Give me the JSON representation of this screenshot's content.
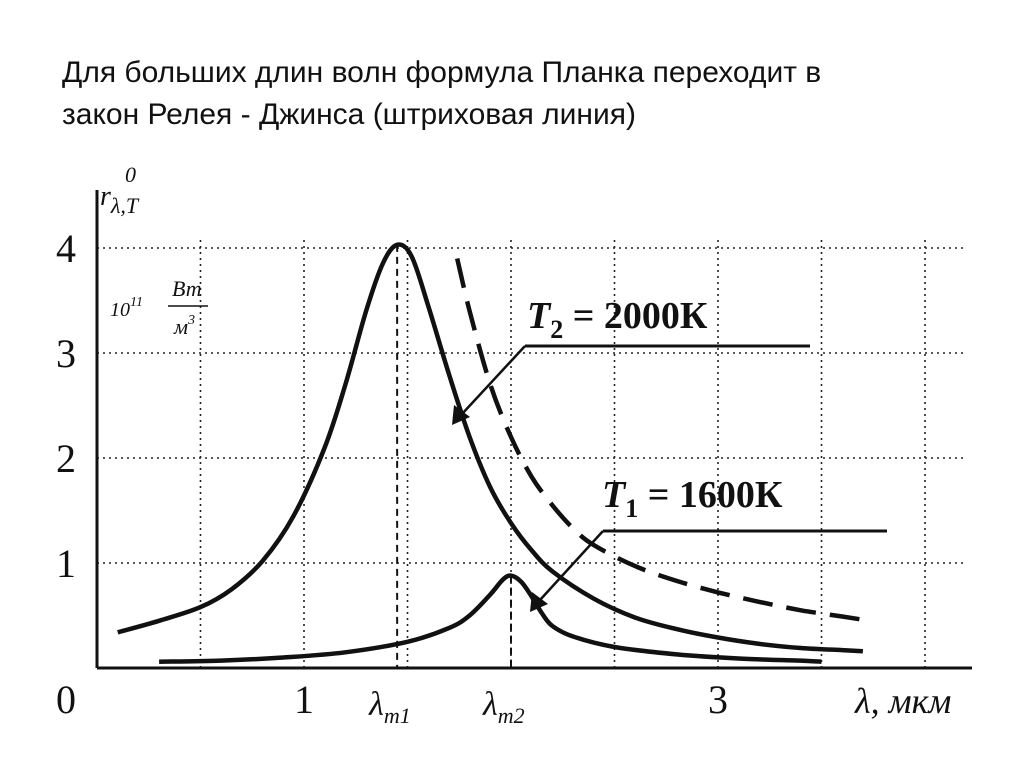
{
  "heading": {
    "line1": "Для больших длин волн формула Планка переходит в",
    "line2": "закон Релея - Джинса (штриховая линия)"
  },
  "chart_data": {
    "type": "line",
    "ylabel": "r",
    "ylabel_sup": "0",
    "ylabel_sub": "λ,T",
    "yunit_exp": "10",
    "yunit_exp_sup": "11",
    "yunit_num": "Вт",
    "yunit_den": "м",
    "yunit_den_sup": "3",
    "xlabel": "λ, мкм",
    "origin_label": "0",
    "x_ticks": [
      {
        "value": 1,
        "label": "1"
      },
      {
        "value": 3,
        "label": "3"
      }
    ],
    "y_ticks": [
      {
        "value": 1,
        "label": "1"
      },
      {
        "value": 2,
        "label": "2"
      },
      {
        "value": 3,
        "label": "3"
      },
      {
        "value": 4,
        "label": "4"
      }
    ],
    "xlim": [
      0,
      4.2
    ],
    "ylim": [
      0,
      4.3
    ],
    "grid": true,
    "peak_markers": [
      {
        "label_main": "λ",
        "label_sub": "m1",
        "x": 1.45,
        "y": 4.03
      },
      {
        "label_main": "λ",
        "label_sub": "m2",
        "x": 2.0,
        "y": 0.88
      }
    ],
    "series": [
      {
        "label": "T2 = 2000K",
        "label_main": "T",
        "label_sub": "2",
        "label_rest": " = 2000К",
        "style": "solid",
        "points": [
          [
            0.1,
            0.34
          ],
          [
            0.3,
            0.45
          ],
          [
            0.5,
            0.58
          ],
          [
            0.65,
            0.75
          ],
          [
            0.8,
            1.02
          ],
          [
            0.95,
            1.45
          ],
          [
            1.1,
            2.1
          ],
          [
            1.2,
            2.7
          ],
          [
            1.3,
            3.4
          ],
          [
            1.38,
            3.85
          ],
          [
            1.45,
            4.03
          ],
          [
            1.52,
            3.92
          ],
          [
            1.6,
            3.45
          ],
          [
            1.7,
            2.8
          ],
          [
            1.8,
            2.2
          ],
          [
            1.9,
            1.72
          ],
          [
            2.0,
            1.38
          ],
          [
            2.1,
            1.12
          ],
          [
            2.2,
            0.92
          ],
          [
            2.4,
            0.66
          ],
          [
            2.6,
            0.48
          ],
          [
            2.8,
            0.37
          ],
          [
            3.0,
            0.29
          ],
          [
            3.2,
            0.23
          ],
          [
            3.4,
            0.19
          ],
          [
            3.6,
            0.17
          ],
          [
            3.7,
            0.16
          ]
        ]
      },
      {
        "label": "T1 = 1600K",
        "label_main": "T",
        "label_sub": "1",
        "label_rest": " = 1600К",
        "style": "solid",
        "points": [
          [
            0.3,
            0.06
          ],
          [
            0.6,
            0.07
          ],
          [
            0.9,
            0.1
          ],
          [
            1.2,
            0.15
          ],
          [
            1.5,
            0.25
          ],
          [
            1.7,
            0.38
          ],
          [
            1.8,
            0.5
          ],
          [
            1.9,
            0.7
          ],
          [
            1.96,
            0.84
          ],
          [
            2.0,
            0.88
          ],
          [
            2.05,
            0.82
          ],
          [
            2.1,
            0.68
          ],
          [
            2.15,
            0.52
          ],
          [
            2.2,
            0.4
          ],
          [
            2.3,
            0.3
          ],
          [
            2.5,
            0.2
          ],
          [
            2.8,
            0.13
          ],
          [
            3.1,
            0.09
          ],
          [
            3.4,
            0.07
          ],
          [
            3.5,
            0.06
          ]
        ]
      },
      {
        "label": "Rayleigh-Jeans",
        "style": "dashed",
        "points": [
          [
            1.74,
            3.9
          ],
          [
            1.8,
            3.4
          ],
          [
            1.9,
            2.7
          ],
          [
            2.0,
            2.2
          ],
          [
            2.1,
            1.82
          ],
          [
            2.2,
            1.55
          ],
          [
            2.3,
            1.33
          ],
          [
            2.4,
            1.17
          ],
          [
            2.6,
            0.97
          ],
          [
            2.8,
            0.83
          ],
          [
            3.0,
            0.72
          ],
          [
            3.2,
            0.63
          ],
          [
            3.4,
            0.55
          ],
          [
            3.6,
            0.49
          ],
          [
            3.73,
            0.45
          ]
        ]
      }
    ]
  }
}
